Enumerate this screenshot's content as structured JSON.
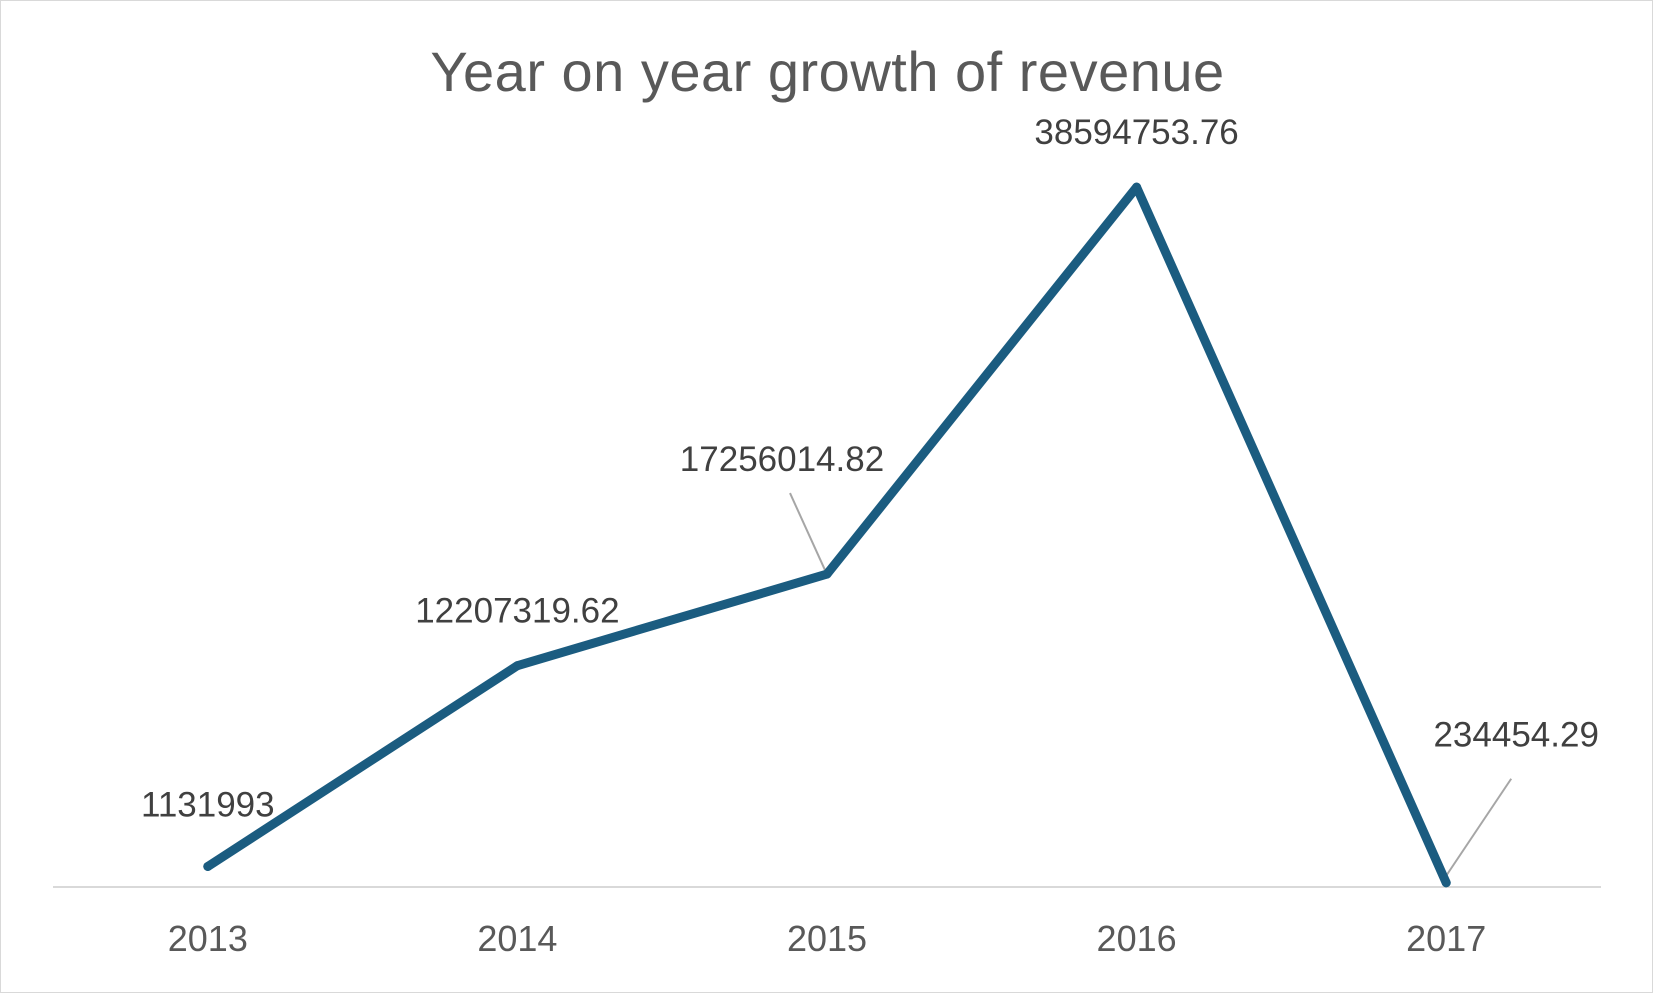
{
  "chart_data": {
    "type": "line",
    "title": "Year on year growth of revenue",
    "xlabel": "",
    "ylabel": "",
    "categories": [
      "2013",
      "2014",
      "2015",
      "2016",
      "2017"
    ],
    "series": [
      {
        "values": [
          1131993,
          12207319.62,
          17256014.82,
          38594753.76,
          234454.29
        ],
        "labels": [
          "1131993",
          "12207319.62",
          "17256014.82",
          "38594753.76",
          "234454.29"
        ],
        "color": "#1b5c80"
      }
    ],
    "ylim": [
      0,
      45000000
    ],
    "grid": false,
    "legend": "none",
    "axis_color": "#d9d9d9",
    "leader_line_color": "#a6a6a6"
  }
}
